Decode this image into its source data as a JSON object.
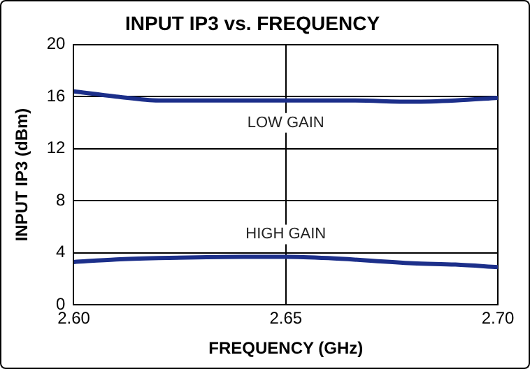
{
  "chart_data": {
    "type": "line",
    "title": "INPUT IP3 vs. FREQUENCY",
    "xlabel": "FREQUENCY (GHz)",
    "ylabel": "INPUT IP3 (dBm)",
    "xlim": [
      2.6,
      2.7
    ],
    "xticks": [
      {
        "value": 2.6,
        "label": "2.60"
      },
      2.65,
      {
        "value": 2.7,
        "label": "2.70"
      }
    ],
    "ylim": [
      0,
      20
    ],
    "yticks": [
      0,
      4,
      8,
      12,
      16,
      20
    ],
    "grid": true,
    "legend": false,
    "series": [
      {
        "name": "LOW GAIN",
        "color": "#1c2f8a",
        "x": [
          2.6,
          2.61,
          2.62,
          2.635,
          2.65,
          2.665,
          2.68,
          2.69,
          2.7
        ],
        "values": [
          16.4,
          16.0,
          15.7,
          15.7,
          15.7,
          15.7,
          15.6,
          15.7,
          15.9
        ]
      },
      {
        "name": "HIGH GAIN",
        "color": "#1c2f8a",
        "x": [
          2.6,
          2.61,
          2.62,
          2.64,
          2.65,
          2.66,
          2.68,
          2.69,
          2.7
        ],
        "values": [
          3.3,
          3.5,
          3.6,
          3.7,
          3.7,
          3.6,
          3.2,
          3.1,
          2.9
        ]
      }
    ]
  }
}
